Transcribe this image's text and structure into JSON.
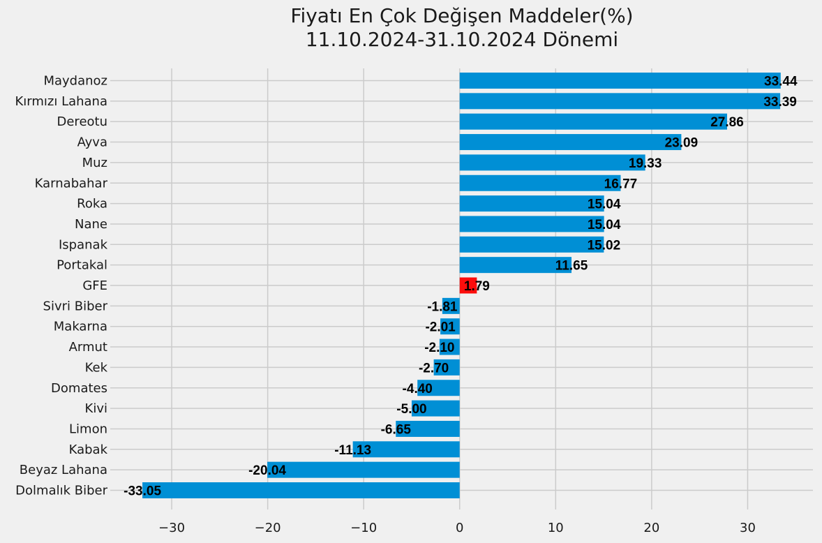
{
  "chart_data": {
    "type": "bar",
    "orientation": "horizontal",
    "title": "Fiyatı En Çok Değişen Maddeler(%)",
    "subtitle": "11.10.2024-31.10.2024 Dönemi",
    "xlabel": "",
    "ylabel": "",
    "xlim": [
      -36.4,
      36.8
    ],
    "xticks": [
      -30,
      -20,
      -10,
      0,
      10,
      20,
      30
    ],
    "xtick_labels": [
      "−30",
      "−20",
      "−10",
      "0",
      "10",
      "20",
      "30"
    ],
    "grid": true,
    "categories": [
      "Maydanoz",
      "Kırmızı Lahana",
      "Dereotu",
      "Ayva",
      "Muz",
      "Karnabahar",
      "Roka",
      "Nane",
      "Ispanak",
      "Portakal",
      "GFE",
      "Sivri Biber",
      "Makarna",
      "Armut",
      "Kek",
      "Domates",
      "Kivi",
      "Limon",
      "Kabak",
      "Beyaz Lahana",
      "Dolmalık Biber"
    ],
    "values": [
      33.44,
      33.39,
      27.86,
      23.09,
      19.33,
      16.77,
      15.04,
      15.04,
      15.02,
      11.65,
      1.79,
      -1.81,
      -2.01,
      -2.1,
      -2.7,
      -4.4,
      -5.0,
      -6.65,
      -11.13,
      -20.04,
      -33.05
    ],
    "value_labels": [
      "33.44",
      "33.39",
      "27.86",
      "23.09",
      "19.33",
      "16.77",
      "15.04",
      "15.04",
      "15.02",
      "11.65",
      "1.79",
      "-1.81",
      "-2.01",
      "-2.10",
      "-2.70",
      "-4.40",
      "-5.00",
      "-6.65",
      "-11.13",
      "-20.04",
      "-33.05"
    ],
    "colors": {
      "default": "#008fd5",
      "highlight": "#fc0d0c",
      "highlight_category": "GFE",
      "background": "#f0f0f0",
      "grid": "#cbcbcb"
    }
  }
}
